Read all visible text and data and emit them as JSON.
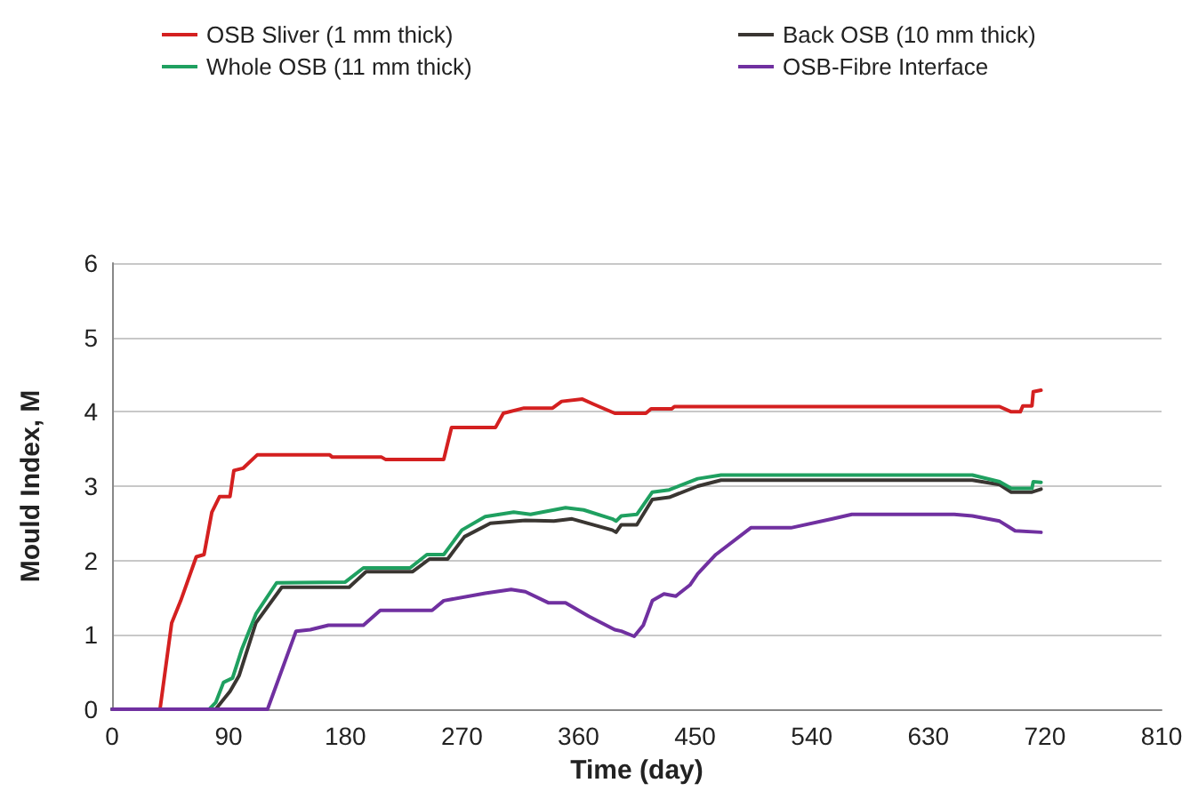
{
  "chart_data": {
    "type": "line",
    "xlabel": "Time (day)",
    "ylabel": "Mould Index, M",
    "xlim": [
      0,
      810
    ],
    "xticks": [
      0,
      90,
      180,
      270,
      360,
      450,
      540,
      630,
      720,
      810
    ],
    "ylim": [
      0,
      6
    ],
    "yticks": [
      0,
      1,
      2,
      3,
      4,
      5,
      6
    ],
    "grid": "y",
    "legend": "top",
    "series": [
      {
        "name": "OSB Sliver (1 mm thick)",
        "color": "#d42020",
        "x": [
          0,
          37,
          46,
          53,
          65,
          71,
          77,
          83,
          91,
          94,
          101,
          112,
          168,
          170,
          208,
          211,
          256,
          262,
          296,
          302,
          318,
          340,
          347,
          363,
          372,
          388,
          412,
          416,
          432,
          434,
          664,
          685,
          694,
          701,
          703,
          710,
          711,
          717
        ],
        "values": [
          0,
          0,
          1.16,
          1.46,
          2.05,
          2.08,
          2.65,
          2.86,
          2.86,
          3.21,
          3.24,
          3.42,
          3.42,
          3.39,
          3.39,
          3.36,
          3.36,
          3.79,
          3.79,
          3.98,
          4.05,
          4.05,
          4.14,
          4.17,
          4.1,
          3.98,
          3.98,
          4.04,
          4.04,
          4.07,
          4.07,
          4.07,
          4.0,
          4.0,
          4.08,
          4.08,
          4.27,
          4.29
        ]
      },
      {
        "name": "Back OSB (10 mm thick)",
        "color": "#3a3632",
        "x": [
          0,
          80,
          91,
          98,
          111,
          131,
          183,
          196,
          232,
          245,
          259,
          272,
          292,
          319,
          341,
          355,
          386,
          389,
          393,
          405,
          417,
          430,
          452,
          470,
          664,
          685,
          694,
          710,
          717
        ],
        "values": [
          0,
          0,
          0.24,
          0.45,
          1.16,
          1.64,
          1.64,
          1.85,
          1.85,
          2.02,
          2.02,
          2.32,
          2.5,
          2.54,
          2.53,
          2.56,
          2.41,
          2.38,
          2.48,
          2.48,
          2.82,
          2.85,
          3.0,
          3.08,
          3.08,
          3.02,
          2.92,
          2.92,
          2.96
        ]
      },
      {
        "name": "Whole OSB (11 mm thick)",
        "color": "#1fa060",
        "x": [
          0,
          75,
          80,
          86,
          93,
          100,
          111,
          127,
          180,
          194,
          230,
          243,
          256,
          270,
          288,
          310,
          323,
          350,
          364,
          386,
          389,
          393,
          405,
          417,
          430,
          452,
          470,
          664,
          685,
          694,
          710,
          711,
          717
        ],
        "values": [
          0,
          0,
          0.09,
          0.36,
          0.42,
          0.8,
          1.28,
          1.7,
          1.71,
          1.9,
          1.9,
          2.08,
          2.08,
          2.41,
          2.59,
          2.65,
          2.62,
          2.71,
          2.68,
          2.56,
          2.53,
          2.6,
          2.62,
          2.92,
          2.95,
          3.1,
          3.15,
          3.15,
          3.06,
          2.97,
          2.97,
          3.06,
          3.05
        ]
      },
      {
        "name": "OSB-Fibre Interface",
        "color": "#7030a0",
        "x": [
          0,
          120,
          142,
          153,
          167,
          194,
          207,
          247,
          256,
          288,
          308,
          319,
          337,
          350,
          368,
          388,
          393,
          403,
          410,
          417,
          426,
          435,
          446,
          452,
          466,
          493,
          524,
          556,
          571,
          650,
          664,
          685,
          697,
          717
        ],
        "values": [
          0,
          0,
          1.05,
          1.07,
          1.13,
          1.13,
          1.33,
          1.33,
          1.46,
          1.56,
          1.61,
          1.58,
          1.43,
          1.43,
          1.25,
          1.07,
          1.05,
          0.98,
          1.13,
          1.46,
          1.55,
          1.52,
          1.67,
          1.82,
          2.08,
          2.44,
          2.44,
          2.56,
          2.62,
          2.62,
          2.6,
          2.53,
          2.4,
          2.38
        ]
      }
    ]
  }
}
